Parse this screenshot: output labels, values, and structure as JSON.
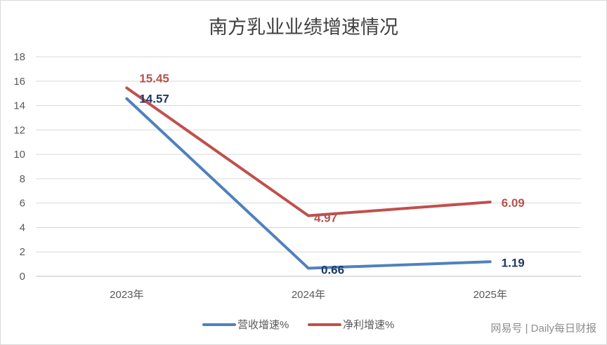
{
  "chart_data": {
    "type": "line",
    "title": "南方乳业业绩增速情况",
    "categories": [
      "2023年",
      "2024年",
      "2025年"
    ],
    "ylim": [
      0,
      18
    ],
    "yticks": [
      0,
      2,
      4,
      6,
      8,
      10,
      12,
      14,
      16,
      18
    ],
    "grid": true,
    "legend_position": "bottom",
    "series": [
      {
        "name": "营收增速%",
        "color": "#4f81bd",
        "label_color": "#1f3864",
        "values": [
          14.57,
          0.66,
          1.19
        ],
        "labels": [
          "14.57",
          "0.66",
          "1.19"
        ]
      },
      {
        "name": "净利增速%",
        "color": "#c0504d",
        "label_color": "#b5524e",
        "values": [
          15.45,
          4.97,
          6.09
        ],
        "labels": [
          "15.45",
          "4.97",
          "6.09"
        ]
      }
    ]
  },
  "watermark": "网易号 | Daily每日财报"
}
